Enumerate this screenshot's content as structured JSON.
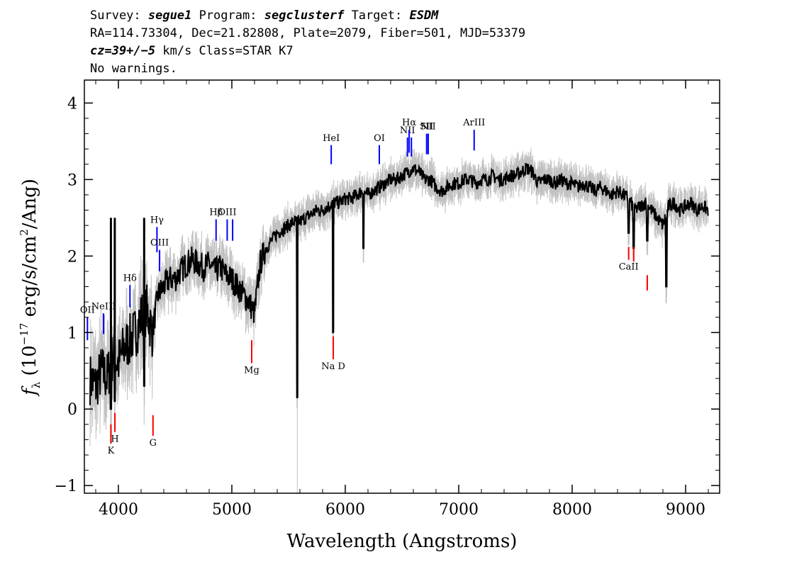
{
  "header": {
    "line1": {
      "survey_label": "Survey:",
      "survey": "segue1",
      "program_label": "Program:",
      "program": "segclusterf",
      "target_label": "Target:",
      "target": "ESDM"
    },
    "line2": "RA=114.73304, Dec=21.82808, Plate=2079, Fiber=501, MJD=53379",
    "line3": {
      "cz": "cz=39+/−5",
      "rest": " km/s Class=STAR K7"
    },
    "line4": "No warnings."
  },
  "chart_data": {
    "type": "line",
    "xlabel": "Wavelength (Angstroms)",
    "ylabel": "f_λ (10^-17 erg/s/cm^2/Ang)",
    "xlim": [
      3700,
      9300
    ],
    "ylim": [
      -1.1,
      4.3
    ],
    "x_ticks": [
      4000,
      5000,
      6000,
      7000,
      8000,
      9000
    ],
    "y_ticks": [
      -1,
      0,
      1,
      2,
      3,
      4
    ],
    "colors": {
      "flux": "#000000",
      "error": "#c0c0c0",
      "emission": "#0000ff",
      "absorption": "#ff0000"
    },
    "series": [
      {
        "name": "flux",
        "x": [
          3750,
          3800,
          3850,
          3900,
          3950,
          4000,
          4050,
          4100,
          4150,
          4200,
          4250,
          4300,
          4350,
          4400,
          4450,
          4500,
          4550,
          4600,
          4650,
          4700,
          4750,
          4800,
          4850,
          4900,
          4950,
          5000,
          5050,
          5100,
          5150,
          5200,
          5250,
          5300,
          5350,
          5400,
          5450,
          5500,
          5550,
          5600,
          5650,
          5700,
          5750,
          5800,
          5850,
          5900,
          5950,
          6000,
          6050,
          6100,
          6150,
          6200,
          6250,
          6300,
          6350,
          6400,
          6450,
          6500,
          6550,
          6600,
          6650,
          6700,
          6750,
          6800,
          6850,
          6900,
          6950,
          7000,
          7050,
          7100,
          7150,
          7200,
          7250,
          7300,
          7350,
          7400,
          7450,
          7500,
          7550,
          7600,
          7650,
          7700,
          7750,
          7800,
          7850,
          7900,
          7950,
          8000,
          8050,
          8100,
          8150,
          8200,
          8250,
          8300,
          8350,
          8400,
          8450,
          8500,
          8550,
          8600,
          8650,
          8700,
          8750,
          8800,
          8850,
          8900,
          8950,
          9000,
          9050,
          9100,
          9150,
          9200
        ],
        "y": [
          0.4,
          0.3,
          0.5,
          0.4,
          0.7,
          0.6,
          0.8,
          0.9,
          1.0,
          1.2,
          1.3,
          1.0,
          1.5,
          1.6,
          1.7,
          1.7,
          1.8,
          1.9,
          1.95,
          1.9,
          1.85,
          1.9,
          1.8,
          1.85,
          1.75,
          1.7,
          1.6,
          1.5,
          1.4,
          1.25,
          1.9,
          2.1,
          2.2,
          2.3,
          2.35,
          2.4,
          2.45,
          2.45,
          2.5,
          2.55,
          2.6,
          2.6,
          2.65,
          2.7,
          2.7,
          2.75,
          2.75,
          2.8,
          2.85,
          2.8,
          2.85,
          2.9,
          2.95,
          3.0,
          3.0,
          3.05,
          3.1,
          3.15,
          3.1,
          3.0,
          3.0,
          2.9,
          2.85,
          2.9,
          2.95,
          2.95,
          3.0,
          3.0,
          2.95,
          3.0,
          3.0,
          3.05,
          3.0,
          3.0,
          3.05,
          3.05,
          3.1,
          3.15,
          3.1,
          2.95,
          3.0,
          3.0,
          2.95,
          3.0,
          2.95,
          2.95,
          2.9,
          2.95,
          2.9,
          2.85,
          2.9,
          2.85,
          2.8,
          2.85,
          2.8,
          2.75,
          2.6,
          2.65,
          2.7,
          2.6,
          2.5,
          2.4,
          2.65,
          2.7,
          2.6,
          2.65,
          2.7,
          2.6,
          2.65,
          2.6
        ]
      }
    ],
    "features": [
      {
        "x": 5577,
        "y": 0.15
      },
      {
        "x": 5893,
        "y": 1.0
      },
      {
        "x": 6160,
        "y": 2.1
      },
      {
        "x": 8498,
        "y": 2.3
      },
      {
        "x": 8542,
        "y": 2.1
      },
      {
        "x": 8662,
        "y": 2.2
      },
      {
        "x": 8830,
        "y": 1.6
      },
      {
        "x": 4227,
        "y": 0.3
      },
      {
        "x": 3934,
        "y": 0.0
      },
      {
        "x": 3968,
        "y": 0.1
      }
    ],
    "emission_lines": [
      {
        "label": "OII",
        "x": 3727,
        "y0": 0.9,
        "y1": 1.2
      },
      {
        "label": "NeIII",
        "x": 3869,
        "y0": 0.98,
        "y1": 1.25
      },
      {
        "label": "Hδ",
        "x": 4102,
        "y0": 1.33,
        "y1": 1.62
      },
      {
        "label": "Hγ",
        "x": 4340,
        "y0": 2.05,
        "y1": 2.38
      },
      {
        "label": "OIII",
        "x": 4363,
        "y0": 1.8,
        "y1": 2.08
      },
      {
        "label": "Hβ",
        "x": 4861,
        "y0": 2.2,
        "y1": 2.48
      },
      {
        "label": "OIII",
        "x": 4959,
        "y0": 2.2,
        "y1": 2.48
      },
      {
        "label": "",
        "x": 5007,
        "y0": 2.2,
        "y1": 2.48
      },
      {
        "label": "HeI",
        "x": 5876,
        "y0": 3.2,
        "y1": 3.45
      },
      {
        "label": "OI",
        "x": 6300,
        "y0": 3.2,
        "y1": 3.45
      },
      {
        "label": "NII",
        "x": 6548,
        "y0": 3.3,
        "y1": 3.55
      },
      {
        "label": "Hα",
        "x": 6563,
        "y0": 3.35,
        "y1": 3.65
      },
      {
        "label": "",
        "x": 6583,
        "y0": 3.3,
        "y1": 3.55
      },
      {
        "label": "SII",
        "x": 6717,
        "y0": 3.33,
        "y1": 3.6
      },
      {
        "label": "NII",
        "x": 6731,
        "y0": 3.33,
        "y1": 3.6
      },
      {
        "label": "ArIII",
        "x": 7136,
        "y0": 3.38,
        "y1": 3.65
      }
    ],
    "absorption_lines": [
      {
        "label": "K",
        "x": 3934,
        "y0": -0.45,
        "y1": -0.2
      },
      {
        "label": "H",
        "x": 3969,
        "y0": -0.3,
        "y1": -0.05
      },
      {
        "label": "G",
        "x": 4305,
        "y0": -0.35,
        "y1": -0.08
      },
      {
        "label": "Mg",
        "x": 5175,
        "y0": 0.6,
        "y1": 0.9
      },
      {
        "label": "Na D",
        "x": 5894,
        "y0": 0.65,
        "y1": 0.95
      },
      {
        "label": "CaII",
        "x": 8498,
        "y0": 1.95,
        "y1": 2.12
      },
      {
        "label": "",
        "x": 8542,
        "y0": 1.93,
        "y1": 2.12
      },
      {
        "label": "",
        "x": 8662,
        "y0": 1.55,
        "y1": 1.75
      }
    ]
  }
}
